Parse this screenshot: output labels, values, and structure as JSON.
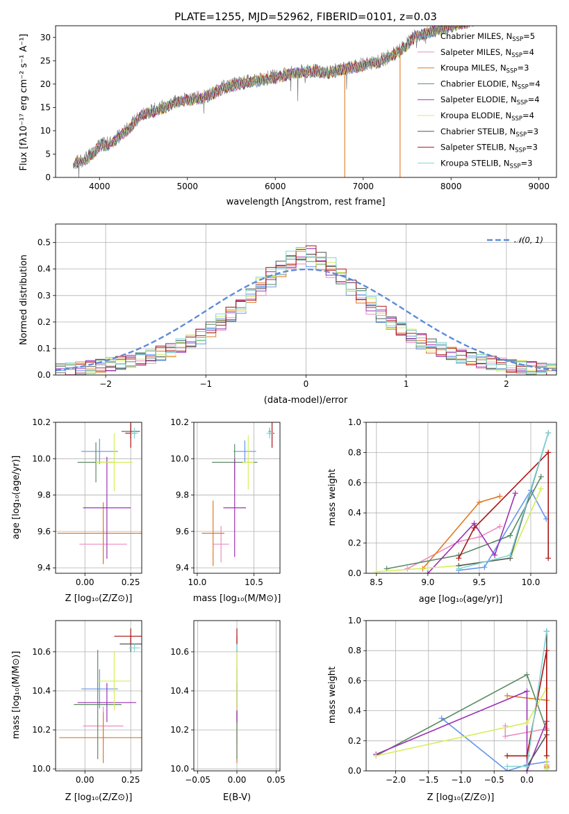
{
  "chart_data": [
    {
      "id": "spectrum",
      "type": "line",
      "title": "PLATE=1255, MJD=52962, FIBERID=0101, z=0.03",
      "xlabel": "wavelength [Angstrom, rest frame]",
      "ylabel": "Flux [fλ10⁻¹⁷ erg cm⁻² s⁻¹ A⁻¹]",
      "xlim": [
        3500,
        9200
      ],
      "ylim": [
        0,
        32.5
      ],
      "xticks": [
        "4000",
        "5000",
        "6000",
        "7000",
        "8000",
        "9000"
      ],
      "yticks": [
        "0",
        "5",
        "10",
        "15",
        "20",
        "25",
        "30"
      ],
      "grid": false,
      "legend_position": "top-right",
      "data_x": [
        3700,
        3800,
        3900,
        4000,
        4100,
        4200,
        4300,
        4400,
        4500,
        4600,
        4700,
        4800,
        4900,
        5000,
        5100,
        5200,
        5300,
        5400,
        5500,
        5600,
        5700,
        5800,
        5900,
        6000,
        6100,
        6200,
        6300,
        6400,
        6500,
        6600,
        6700,
        6800,
        6900,
        7000,
        7100,
        7200,
        7300,
        7400,
        7500,
        7600
      ],
      "data_y": [
        3.2,
        3.5,
        4.8,
        7.0,
        7.2,
        8.5,
        10.0,
        12.0,
        13.8,
        14.2,
        15.0,
        15.6,
        16.4,
        16.8,
        17.0,
        17.3,
        18.2,
        19.2,
        19.8,
        20.2,
        20.5,
        20.8,
        21.3,
        21.6,
        22.0,
        22.4,
        22.6,
        23.0,
        22.7,
        22.6,
        22.9,
        23.4,
        23.8,
        24.2,
        24.6,
        25.0,
        26.0,
        27.0,
        28.6,
        30.5
      ],
      "model_y": [
        3.0,
        3.3,
        4.6,
        6.8,
        7.0,
        8.3,
        9.8,
        11.8,
        13.6,
        14.0,
        14.8,
        15.4,
        16.2,
        16.6,
        16.8,
        17.1,
        18.0,
        19.0,
        19.6,
        20.0,
        20.3,
        20.6,
        21.1,
        21.4,
        21.8,
        22.2,
        22.4,
        22.8,
        22.5,
        22.4,
        22.7,
        23.2,
        23.6,
        24.0,
        24.4,
        24.8,
        25.8,
        26.8,
        28.4,
        30.3
      ],
      "drops": [
        {
          "series": "Kroupa MILES, NSSP=3",
          "at_x": 6790
        },
        {
          "series": "Kroupa MILES, NSSP=3",
          "at_x": 7420
        }
      ],
      "legend": [
        {
          "label": "Chabrier MILES, N",
          "sub": "SSP",
          "tail": "=5",
          "color": "#6495ed"
        },
        {
          "label": "Salpeter MILES, N",
          "sub": "SSP",
          "tail": "=4",
          "color": "#e88ec2"
        },
        {
          "label": "Kroupa MILES, N",
          "sub": "SSP",
          "tail": "=3",
          "color": "#e07a20"
        },
        {
          "label": "Chabrier ELODIE, N",
          "sub": "SSP",
          "tail": "=4",
          "color": "#5c8a64"
        },
        {
          "label": "Salpeter ELODIE, N",
          "sub": "SSP",
          "tail": "=4",
          "color": "#9b30b5"
        },
        {
          "label": "Kroupa ELODIE, N",
          "sub": "SSP",
          "tail": "=4",
          "color": "#d6ee5a"
        },
        {
          "label": "Chabrier STELIB, N",
          "sub": "SSP",
          "tail": "=3",
          "color": "#555555"
        },
        {
          "label": "Salpeter STELIB, N",
          "sub": "SSP",
          "tail": "=3",
          "color": "#aa1515"
        },
        {
          "label": "Kroupa STELIB, N",
          "sub": "SSP",
          "tail": "=3",
          "color": "#7fd6d6"
        }
      ]
    },
    {
      "id": "residuals",
      "type": "histogram",
      "xlabel": "(data-model)/error",
      "ylabel": "Normed distribution",
      "xlim": [
        -2.5,
        2.5
      ],
      "ylim": [
        0,
        0.57
      ],
      "xticks": [
        "−2",
        "−1",
        "0",
        "1",
        "2"
      ],
      "yticks": [
        "0.0",
        "0.1",
        "0.2",
        "0.3",
        "0.4",
        "0.5"
      ],
      "grid": true,
      "legend_position": "top-right",
      "reference_curve": {
        "label": "𝒩(0, 1)",
        "color": "#5b8bd9"
      },
      "bin_width": 0.1,
      "series_shape": [
        0.018,
        0.021,
        0.025,
        0.03,
        0.034,
        0.04,
        0.046,
        0.052,
        0.06,
        0.07,
        0.082,
        0.095,
        0.11,
        0.128,
        0.148,
        0.172,
        0.198,
        0.228,
        0.262,
        0.298,
        0.335,
        0.37,
        0.402,
        0.43,
        0.452,
        0.468,
        0.478,
        0.488,
        0.495,
        0.5,
        0.5,
        0.495,
        0.485,
        0.47,
        0.448,
        0.42,
        0.388,
        0.352,
        0.315,
        0.278,
        0.242,
        0.208,
        0.178,
        0.152,
        0.128,
        0.108,
        0.09,
        0.075,
        0.062,
        0.05
      ]
    },
    {
      "id": "age_vs_Z",
      "type": "errorbar",
      "xlabel": "Z [log₁₀(Z/Z⊙)]",
      "ylabel": "age  [log₁₀(age/yr)]",
      "xlim": [
        -0.16,
        0.31
      ],
      "ylim": [
        9.37,
        10.2
      ],
      "xticks": [
        "0.00",
        "0.25"
      ],
      "yticks": [
        "9.4",
        "9.6",
        "9.8",
        "10.0",
        "10.2"
      ],
      "grid": true,
      "points": [
        {
          "x": 0.08,
          "y": 10.04,
          "xerr": 0.1,
          "yerr": 0.07,
          "color": "#6495ed"
        },
        {
          "x": 0.1,
          "y": 9.53,
          "xerr": 0.13,
          "yerr": 0.1,
          "color": "#e88ec2"
        },
        {
          "x": 0.1,
          "y": 9.59,
          "xerr": 0.25,
          "yerr": 0.17,
          "color": "#e07a20"
        },
        {
          "x": 0.06,
          "y": 9.98,
          "xerr": 0.1,
          "yerr": 0.11,
          "color": "#5c8a64"
        },
        {
          "x": 0.12,
          "y": 9.73,
          "xerr": 0.13,
          "yerr": 0.28,
          "color": "#9b30b5"
        },
        {
          "x": 0.16,
          "y": 9.98,
          "xerr": 0.1,
          "yerr": 0.16,
          "color": "#d6ee5a"
        },
        {
          "x": 0.25,
          "y": 10.15,
          "xerr": 0.05,
          "yerr": 0.04,
          "color": "#555555"
        },
        {
          "x": 0.25,
          "y": 10.14,
          "xerr": 0.03,
          "yerr": 0.08,
          "color": "#aa1515"
        },
        {
          "x": 0.27,
          "y": 10.14,
          "xerr": 0.02,
          "yerr": 0.03,
          "color": "#7fd6d6"
        }
      ]
    },
    {
      "id": "age_vs_mass",
      "type": "errorbar",
      "xlabel": "mass [log₁₀(M/M⊙)]",
      "ylabel": "",
      "xlim": [
        9.97,
        10.73
      ],
      "ylim": [
        9.37,
        10.2
      ],
      "xticks": [
        "10.0",
        "10.5"
      ],
      "yticks": [
        "9.4",
        "9.6",
        "9.8",
        "10.0",
        "10.2"
      ],
      "grid": true,
      "points": [
        {
          "x": 10.42,
          "y": 10.04,
          "xerr": 0.1,
          "yerr": 0.06,
          "color": "#6495ed"
        },
        {
          "x": 10.21,
          "y": 9.53,
          "xerr": 0.07,
          "yerr": 0.1,
          "color": "#e88ec2"
        },
        {
          "x": 10.14,
          "y": 9.59,
          "xerr": 0.1,
          "yerr": 0.18,
          "color": "#e07a20"
        },
        {
          "x": 10.33,
          "y": 9.98,
          "xerr": 0.2,
          "yerr": 0.1,
          "color": "#5c8a64"
        },
        {
          "x": 10.33,
          "y": 9.73,
          "xerr": 0.1,
          "yerr": 0.27,
          "color": "#9b30b5"
        },
        {
          "x": 10.45,
          "y": 9.98,
          "xerr": 0.05,
          "yerr": 0.15,
          "color": "#d6ee5a"
        },
        {
          "x": 10.64,
          "y": 10.15,
          "xerr": 0.01,
          "yerr": 0.02,
          "color": "#555555"
        },
        {
          "x": 10.66,
          "y": 10.14,
          "xerr": 0.02,
          "yerr": 0.08,
          "color": "#aa1515"
        },
        {
          "x": 10.64,
          "y": 10.14,
          "xerr": 0.03,
          "yerr": 0.03,
          "color": "#7fd6d6"
        }
      ]
    },
    {
      "id": "weight_vs_age",
      "type": "line",
      "xlabel": "age  [log₁₀(age/yr)]",
      "ylabel": "mass weight",
      "xlim": [
        8.4,
        10.25
      ],
      "ylim": [
        0,
        1.0
      ],
      "xticks": [
        "8.5",
        "9.0",
        "9.5",
        "10.0"
      ],
      "yticks": [
        "0.0",
        "0.2",
        "0.4",
        "0.6",
        "0.8",
        "1.0"
      ],
      "grid": true,
      "series": [
        {
          "name": "Chabrier MILES",
          "color": "#6495ed",
          "x": [
            9.3,
            9.55,
            10.0,
            10.15
          ],
          "y": [
            0.02,
            0.04,
            0.55,
            0.36
          ]
        },
        {
          "name": "Salpeter MILES",
          "color": "#e88ec2",
          "x": [
            8.8,
            9.3,
            9.5,
            9.7
          ],
          "y": [
            0.03,
            0.21,
            0.24,
            0.31
          ]
        },
        {
          "name": "Kroupa MILES",
          "color": "#e07a20",
          "x": [
            8.95,
            9.5,
            9.7
          ],
          "y": [
            0.03,
            0.47,
            0.51
          ]
        },
        {
          "name": "Chabrier ELODIE",
          "color": "#5c8a64",
          "x": [
            8.6,
            9.3,
            9.8,
            10.1
          ],
          "y": [
            0.03,
            0.12,
            0.25,
            0.64
          ]
        },
        {
          "name": "Salpeter ELODIE",
          "color": "#9b30b5",
          "x": [
            9.0,
            9.45,
            9.65,
            9.85
          ],
          "y": [
            0.0,
            0.33,
            0.12,
            0.53
          ]
        },
        {
          "name": "Kroupa ELODIE",
          "color": "#d6ee5a",
          "x": [
            8.5,
            9.3,
            9.8,
            10.1
          ],
          "y": [
            0.01,
            0.05,
            0.1,
            0.56
          ]
        },
        {
          "name": "Chabrier STELIB",
          "color": "#555555",
          "x": [
            9.3,
            9.8,
            10.17
          ],
          "y": [
            0.05,
            0.1,
            0.93
          ]
        },
        {
          "name": "Salpeter STELIB",
          "color": "#aa1515",
          "x": [
            9.3,
            9.45,
            10.17,
            10.17
          ],
          "y": [
            0.1,
            0.3,
            0.8,
            0.1
          ]
        },
        {
          "name": "Kroupa STELIB",
          "color": "#7fd6d6",
          "x": [
            9.3,
            9.8,
            10.17
          ],
          "y": [
            0.03,
            0.12,
            0.93
          ]
        }
      ]
    },
    {
      "id": "mass_vs_Z",
      "type": "errorbar",
      "xlabel": "Z [log₁₀(Z/Z⊙)]",
      "ylabel": "mass [log₁₀(M/M⊙)]",
      "xlim": [
        -0.16,
        0.31
      ],
      "ylim": [
        9.99,
        10.76
      ],
      "xticks": [
        "0.00",
        "0.25"
      ],
      "yticks": [
        "10.0",
        "10.2",
        "10.4",
        "10.6"
      ],
      "grid": true,
      "points": [
        {
          "x": 0.08,
          "y": 10.41,
          "xerr": 0.1,
          "yerr": 0.1,
          "color": "#6495ed"
        },
        {
          "x": 0.1,
          "y": 10.22,
          "xerr": 0.11,
          "yerr": 0.1,
          "color": "#e88ec2"
        },
        {
          "x": 0.1,
          "y": 10.16,
          "xerr": 0.24,
          "yerr": 0.13,
          "color": "#e07a20"
        },
        {
          "x": 0.07,
          "y": 10.33,
          "xerr": 0.13,
          "yerr": 0.28,
          "color": "#5c8a64"
        },
        {
          "x": 0.12,
          "y": 10.34,
          "xerr": 0.16,
          "yerr": 0.1,
          "color": "#9b30b5"
        },
        {
          "x": 0.16,
          "y": 10.45,
          "xerr": 0.09,
          "yerr": 0.15,
          "color": "#d6ee5a"
        },
        {
          "x": 0.25,
          "y": 10.64,
          "xerr": 0.06,
          "yerr": 0.04,
          "color": "#555555"
        },
        {
          "x": 0.25,
          "y": 10.68,
          "xerr": 0.09,
          "yerr": 0.04,
          "color": "#aa1515"
        },
        {
          "x": 0.27,
          "y": 10.62,
          "xerr": 0.03,
          "yerr": 0.02,
          "color": "#7fd6d6"
        }
      ]
    },
    {
      "id": "mass_vs_EBV",
      "type": "errorbar",
      "xlabel": "E(B-V)",
      "ylabel": "",
      "xlim": [
        -0.055,
        0.055
      ],
      "ylim": [
        9.99,
        10.76
      ],
      "xticks": [
        "−0.05",
        "0.00",
        "0.05"
      ],
      "yticks": [
        "10.0",
        "10.2",
        "10.4",
        "10.6"
      ],
      "grid": true,
      "points": [
        {
          "x": 0.0,
          "y": 10.41,
          "xerr": 0.0,
          "yerr": 0.1,
          "color": "#6495ed"
        },
        {
          "x": 0.0,
          "y": 10.22,
          "xerr": 0.0,
          "yerr": 0.1,
          "color": "#e88ec2"
        },
        {
          "x": 0.0,
          "y": 10.16,
          "xerr": 0.0,
          "yerr": 0.13,
          "color": "#e07a20"
        },
        {
          "x": 0.0,
          "y": 10.33,
          "xerr": 0.0,
          "yerr": 0.28,
          "color": "#5c8a64"
        },
        {
          "x": 0.0,
          "y": 10.34,
          "xerr": 0.0,
          "yerr": 0.1,
          "color": "#9b30b5"
        },
        {
          "x": 0.0,
          "y": 10.45,
          "xerr": 0.0,
          "yerr": 0.15,
          "color": "#d6ee5a"
        },
        {
          "x": 0.0,
          "y": 10.64,
          "xerr": 0.0,
          "yerr": 0.04,
          "color": "#555555"
        },
        {
          "x": 0.0,
          "y": 10.68,
          "xerr": 0.0,
          "yerr": 0.04,
          "color": "#aa1515"
        },
        {
          "x": 0.0,
          "y": 10.62,
          "xerr": 0.0,
          "yerr": 0.02,
          "color": "#7fd6d6"
        }
      ]
    },
    {
      "id": "weight_vs_Z",
      "type": "line",
      "xlabel": "Z [log₁₀(Z/Z⊙)]",
      "ylabel": "mass weight",
      "xlim": [
        -2.45,
        0.45
      ],
      "ylim": [
        0,
        1.0
      ],
      "xticks": [
        "−2.0",
        "−1.5",
        "−1.0",
        "−0.5",
        "0.0"
      ],
      "yticks": [
        "0.0",
        "0.2",
        "0.4",
        "0.6",
        "0.8",
        "1.0"
      ],
      "grid": true,
      "series": [
        {
          "name": "Chabrier MILES",
          "color": "#6495ed",
          "x": [
            -1.3,
            -0.3,
            0.0,
            0.3,
            0.3
          ],
          "y": [
            0.35,
            0.0,
            0.04,
            0.06,
            0.93
          ]
        },
        {
          "name": "Salpeter MILES",
          "color": "#e88ec2",
          "x": [
            -0.33,
            -0.33,
            0.3,
            0.3
          ],
          "y": [
            0.3,
            0.23,
            0.28,
            0.04
          ]
        },
        {
          "name": "Kroupa MILES",
          "color": "#e07a20",
          "x": [
            -0.3,
            0.3,
            0.3
          ],
          "y": [
            0.5,
            0.47,
            0.03
          ]
        },
        {
          "name": "Chabrier ELODIE",
          "color": "#5c8a64",
          "x": [
            -2.3,
            0.0,
            0.3,
            0.3
          ],
          "y": [
            0.1,
            0.64,
            0.27,
            0.02
          ]
        },
        {
          "name": "Salpeter ELODIE",
          "color": "#9b30b5",
          "x": [
            -2.3,
            0.0,
            0.0,
            0.3
          ],
          "y": [
            0.11,
            0.53,
            0.0,
            0.33
          ]
        },
        {
          "name": "Kroupa ELODIE",
          "color": "#d6ee5a",
          "x": [
            -2.3,
            0.0,
            0.3,
            0.3
          ],
          "y": [
            0.1,
            0.32,
            0.55,
            0.01
          ]
        },
        {
          "name": "Chabrier STELIB",
          "color": "#555555",
          "x": [
            0.0,
            0.3,
            0.3
          ],
          "y": [
            0.03,
            0.24,
            0.93
          ]
        },
        {
          "name": "Salpeter STELIB",
          "color": "#aa1515",
          "x": [
            -0.3,
            0.0,
            0.3,
            0.3
          ],
          "y": [
            0.1,
            0.1,
            0.8,
            0.1
          ]
        },
        {
          "name": "Kroupa STELIB",
          "color": "#7fd6d6",
          "x": [
            -0.3,
            0.0,
            0.3
          ],
          "y": [
            0.03,
            0.03,
            0.93
          ]
        }
      ]
    }
  ]
}
